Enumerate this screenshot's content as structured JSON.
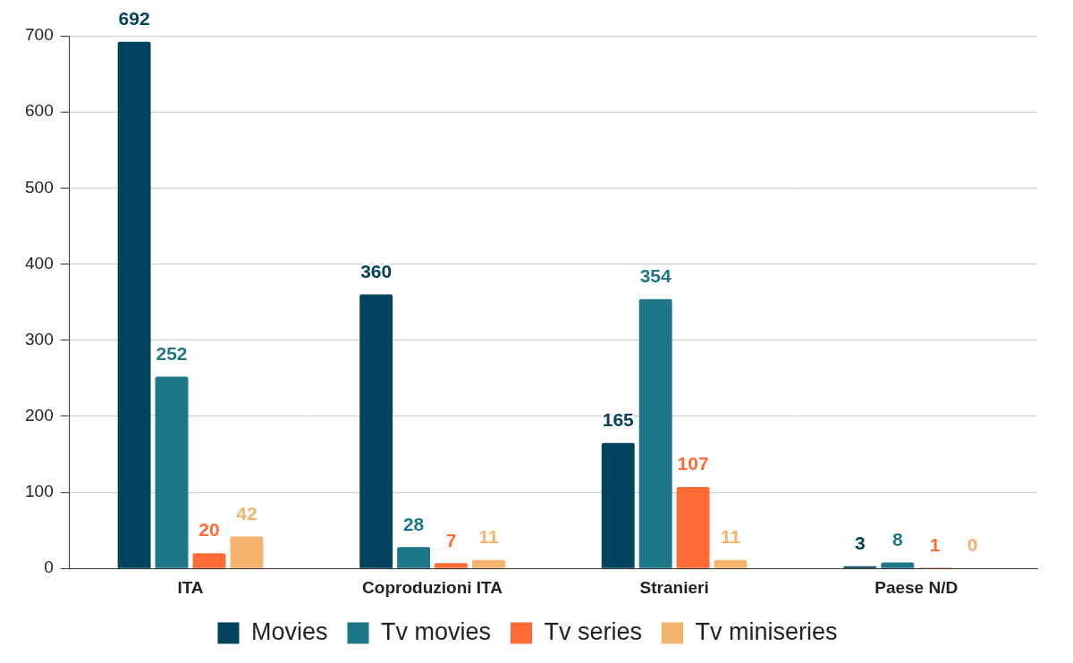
{
  "chart_data": {
    "type": "bar",
    "categories": [
      "ITA",
      "Coproduzioni ITA",
      "Stranieri",
      "Paese N/D"
    ],
    "series": [
      {
        "name": "Movies",
        "color": "#01425e",
        "values": [
          692,
          360,
          165,
          3
        ]
      },
      {
        "name": "Tv movies",
        "color": "#1e7786",
        "values": [
          252,
          28,
          354,
          8
        ]
      },
      {
        "name": "Tv series",
        "color": "#ff6b35",
        "values": [
          20,
          7,
          107,
          1
        ]
      },
      {
        "name": "Tv miniseries",
        "color": "#f6b36e",
        "values": [
          42,
          11,
          11,
          0
        ]
      }
    ],
    "ylim": [
      0,
      700
    ],
    "yticks": [
      0,
      100,
      200,
      300,
      400,
      500,
      600,
      700
    ],
    "grid": true,
    "legend": "bottom",
    "data_labels": true
  }
}
